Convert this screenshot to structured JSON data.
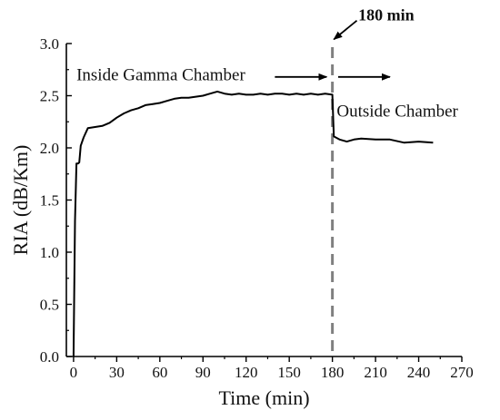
{
  "chart_data": {
    "type": "line",
    "title": "",
    "xlabel": "Time (min)",
    "ylabel": "RIA (dB/Km)",
    "xlim": [
      -5,
      270
    ],
    "ylim": [
      0.0,
      3.0
    ],
    "xticks": [
      0,
      30,
      60,
      90,
      120,
      150,
      180,
      210,
      240,
      270
    ],
    "yticks": [
      0.0,
      0.5,
      1.0,
      1.5,
      2.0,
      2.5,
      3.0
    ],
    "xtick_labels": [
      "0",
      "30",
      "60",
      "90",
      "120",
      "150",
      "180",
      "210",
      "240",
      "270"
    ],
    "ytick_labels": [
      "0.0",
      "0.5",
      "1.0",
      "1.5",
      "2.0",
      "2.5",
      "3.0"
    ],
    "grid": false,
    "series": [
      {
        "x": [
          0,
          1,
          2,
          3,
          4,
          5,
          7,
          10,
          15,
          20,
          25,
          30,
          35,
          40,
          45,
          50,
          55,
          60,
          65,
          70,
          75,
          80,
          85,
          90,
          95,
          100,
          105,
          110,
          115,
          120,
          125,
          130,
          135,
          140,
          145,
          150,
          155,
          160,
          165,
          170,
          175,
          180,
          181,
          185,
          190,
          195,
          200,
          210,
          220,
          230,
          240,
          250
        ],
        "y": [
          0.0,
          1.3,
          1.85,
          1.85,
          1.86,
          2.02,
          2.1,
          2.19,
          2.2,
          2.21,
          2.24,
          2.29,
          2.33,
          2.36,
          2.38,
          2.41,
          2.42,
          2.43,
          2.45,
          2.47,
          2.48,
          2.48,
          2.49,
          2.5,
          2.52,
          2.54,
          2.52,
          2.51,
          2.52,
          2.51,
          2.51,
          2.52,
          2.51,
          2.52,
          2.52,
          2.51,
          2.52,
          2.51,
          2.52,
          2.51,
          2.52,
          2.51,
          2.11,
          2.08,
          2.06,
          2.08,
          2.09,
          2.08,
          2.08,
          2.05,
          2.06,
          2.05
        ],
        "color": "#000000"
      }
    ],
    "reference_line": {
      "x": 180,
      "style": "dashed",
      "color": "#808080"
    },
    "annotations": [
      {
        "text": "Inside Gamma Chamber",
        "x": 2,
        "y": 2.65
      },
      {
        "text": "Outside Chamber",
        "x": 183,
        "y": 2.3
      },
      {
        "text": "180 min",
        "x": 198,
        "y": 3.22,
        "bold": true
      }
    ],
    "arrows": [
      {
        "from": [
          140,
          2.68
        ],
        "to": [
          176,
          2.68
        ]
      },
      {
        "from": [
          184,
          2.68
        ],
        "to": [
          220,
          2.68
        ]
      },
      {
        "from": [
          197,
          3.22
        ],
        "to": [
          181,
          3.04
        ]
      }
    ]
  }
}
